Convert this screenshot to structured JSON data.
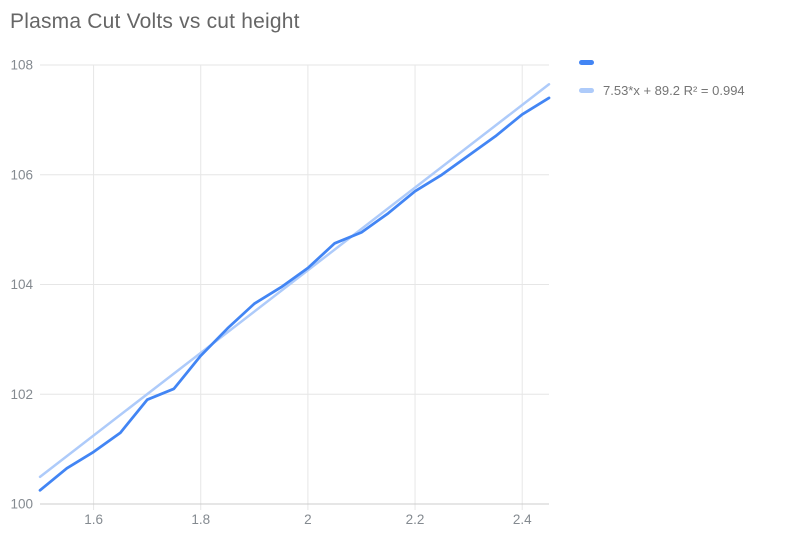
{
  "title": "Plasma Cut Volts vs cut height",
  "legend": {
    "series_label": "",
    "trendline_label": "7.53*x + 89.2 R² = 0.994"
  },
  "colors": {
    "series": "#4285f4",
    "trendline": "#aecbfa",
    "gridline": "#e6e6e6",
    "axis_line": "#cccccc",
    "title_text": "#666666",
    "tick_text": "#848a90",
    "legend_text": "#757575",
    "background": "#ffffff"
  },
  "chart_data": {
    "type": "line",
    "title": "Plasma Cut Volts vs cut height",
    "xlabel": "",
    "ylabel": "",
    "xlim": [
      1.5,
      2.45
    ],
    "ylim": [
      100,
      108
    ],
    "x_ticks": [
      1.6,
      1.8,
      2,
      2.2,
      2.4
    ],
    "x_tick_labels": [
      "1.6",
      "1.8",
      "2",
      "2.2",
      "2.4"
    ],
    "y_ticks": [
      100,
      102,
      104,
      106,
      108
    ],
    "y_tick_labels": [
      "100",
      "102",
      "104",
      "106",
      "108"
    ],
    "grid": true,
    "legend_position": "top-right",
    "series": [
      {
        "name": "",
        "color": "#4285f4",
        "x": [
          1.5,
          1.55,
          1.6,
          1.65,
          1.7,
          1.75,
          1.8,
          1.85,
          1.9,
          1.95,
          2.0,
          2.05,
          2.1,
          2.15,
          2.2,
          2.25,
          2.3,
          2.35,
          2.4,
          2.45
        ],
        "values": [
          100.25,
          100.65,
          100.95,
          101.3,
          101.9,
          102.1,
          102.7,
          103.2,
          103.65,
          103.95,
          104.3,
          104.75,
          104.95,
          105.3,
          105.7,
          106.0,
          106.35,
          106.7,
          107.1,
          107.4
        ]
      }
    ],
    "trendline": {
      "label": "7.53*x + 89.2 R² = 0.994",
      "slope": 7.53,
      "intercept": 89.2,
      "r_squared": 0.994,
      "color": "#aecbfa",
      "x_domain": [
        1.5,
        2.45
      ]
    }
  }
}
